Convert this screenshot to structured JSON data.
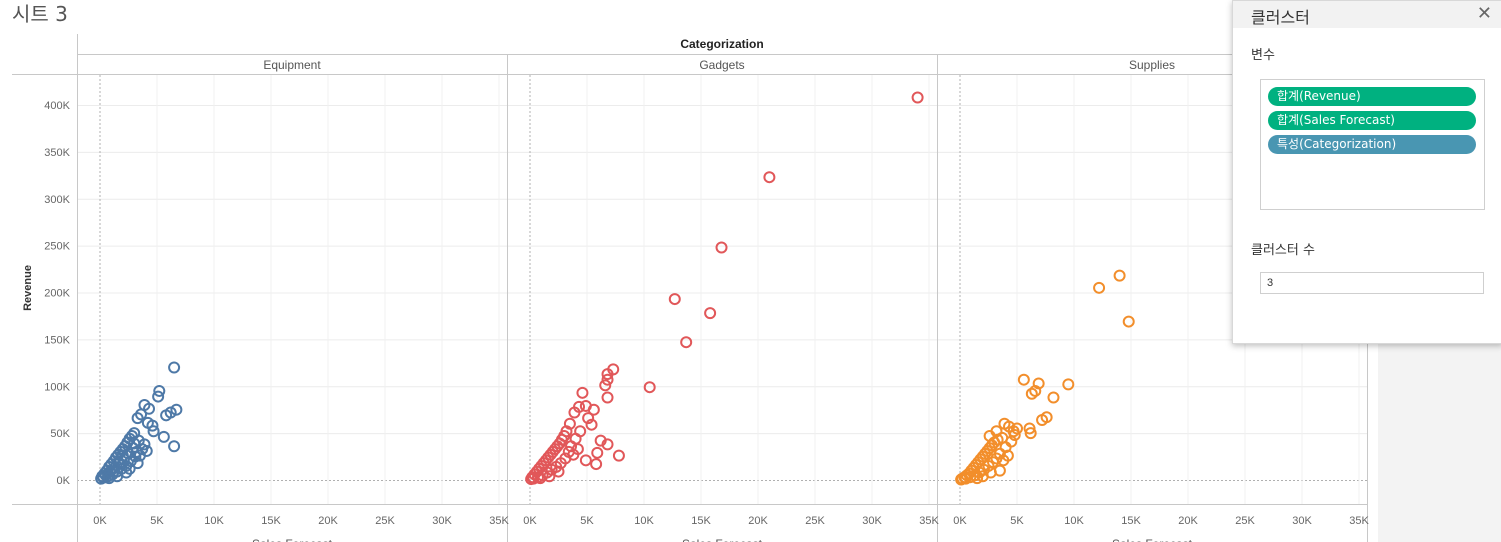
{
  "sheet": {
    "title": "시트 3"
  },
  "chart_data": {
    "type": "scatter",
    "column_header": "Categorization",
    "ylabel": "Revenue",
    "xlabel": "Sales Forecast",
    "ylim": [
      0,
      425000
    ],
    "xlim": [
      -2000,
      36000
    ],
    "y_ticks": [
      0,
      50000,
      100000,
      150000,
      200000,
      250000,
      300000,
      350000,
      400000
    ],
    "y_tick_labels": [
      "0K",
      "50K",
      "100K",
      "150K",
      "200K",
      "250K",
      "300K",
      "350K",
      "400K"
    ],
    "x_ticks": [
      0,
      5000,
      10000,
      15000,
      20000,
      25000,
      30000,
      35000
    ],
    "x_tick_labels": [
      "0K",
      "5K",
      "10K",
      "15K",
      "20K",
      "25K",
      "30K",
      "35K"
    ],
    "panels": [
      {
        "name": "Equipment",
        "color": "#4e79a7",
        "points": [
          {
            "x": 6500,
            "y": 120000
          },
          {
            "x": 5200,
            "y": 95000
          },
          {
            "x": 5100,
            "y": 89000
          },
          {
            "x": 3900,
            "y": 80000
          },
          {
            "x": 4300,
            "y": 76000
          },
          {
            "x": 6700,
            "y": 75000
          },
          {
            "x": 6200,
            "y": 72000
          },
          {
            "x": 5800,
            "y": 69000
          },
          {
            "x": 3600,
            "y": 70000
          },
          {
            "x": 3300,
            "y": 66000
          },
          {
            "x": 4200,
            "y": 61000
          },
          {
            "x": 4600,
            "y": 58000
          },
          {
            "x": 4700,
            "y": 52000
          },
          {
            "x": 5600,
            "y": 46000
          },
          {
            "x": 6500,
            "y": 36000
          },
          {
            "x": 3900,
            "y": 38000
          },
          {
            "x": 4100,
            "y": 31000
          },
          {
            "x": 3400,
            "y": 42000
          },
          {
            "x": 3000,
            "y": 50000
          },
          {
            "x": 2800,
            "y": 47000
          },
          {
            "x": 2600,
            "y": 44000
          },
          {
            "x": 2400,
            "y": 40000
          },
          {
            "x": 2200,
            "y": 36000
          },
          {
            "x": 2000,
            "y": 33000
          },
          {
            "x": 1800,
            "y": 30000
          },
          {
            "x": 1600,
            "y": 27000
          },
          {
            "x": 1400,
            "y": 24000
          },
          {
            "x": 1200,
            "y": 20000
          },
          {
            "x": 1000,
            "y": 17000
          },
          {
            "x": 800,
            "y": 14000
          },
          {
            "x": 600,
            "y": 10000
          },
          {
            "x": 400,
            "y": 7000
          },
          {
            "x": 200,
            "y": 4000
          },
          {
            "x": 100,
            "y": 1500
          },
          {
            "x": 300,
            "y": 2500
          },
          {
            "x": 700,
            "y": 4000
          },
          {
            "x": 1100,
            "y": 6000
          },
          {
            "x": 1500,
            "y": 9000
          },
          {
            "x": 1900,
            "y": 12000
          },
          {
            "x": 2300,
            "y": 15000
          },
          {
            "x": 2700,
            "y": 20000
          },
          {
            "x": 3100,
            "y": 25000
          },
          {
            "x": 3200,
            "y": 30000
          },
          {
            "x": 2900,
            "y": 34000
          },
          {
            "x": 2500,
            "y": 28000
          },
          {
            "x": 2100,
            "y": 22000
          },
          {
            "x": 1700,
            "y": 18000
          },
          {
            "x": 1300,
            "y": 13000
          },
          {
            "x": 900,
            "y": 9000
          },
          {
            "x": 500,
            "y": 5000
          },
          {
            "x": 1500,
            "y": 4000
          },
          {
            "x": 2300,
            "y": 8000
          },
          {
            "x": 2600,
            "y": 12000
          },
          {
            "x": 3300,
            "y": 18000
          },
          {
            "x": 3500,
            "y": 26000
          },
          {
            "x": 3700,
            "y": 33000
          },
          {
            "x": 3000,
            "y": 39000
          },
          {
            "x": 2000,
            "y": 26000
          },
          {
            "x": 1200,
            "y": 9000
          },
          {
            "x": 800,
            "y": 2000
          }
        ]
      },
      {
        "name": "Gadgets",
        "color": "#e15759",
        "points": [
          {
            "x": 34000,
            "y": 408000
          },
          {
            "x": 21000,
            "y": 323000
          },
          {
            "x": 16800,
            "y": 248000
          },
          {
            "x": 12700,
            "y": 193000
          },
          {
            "x": 15800,
            "y": 178000
          },
          {
            "x": 13700,
            "y": 147000
          },
          {
            "x": 10500,
            "y": 99000
          },
          {
            "x": 7300,
            "y": 118000
          },
          {
            "x": 6800,
            "y": 113000
          },
          {
            "x": 6800,
            "y": 107000
          },
          {
            "x": 6600,
            "y": 101000
          },
          {
            "x": 4600,
            "y": 93000
          },
          {
            "x": 6800,
            "y": 88000
          },
          {
            "x": 4900,
            "y": 79000
          },
          {
            "x": 4300,
            "y": 78000
          },
          {
            "x": 3900,
            "y": 72000
          },
          {
            "x": 5600,
            "y": 75000
          },
          {
            "x": 5100,
            "y": 66000
          },
          {
            "x": 5400,
            "y": 59000
          },
          {
            "x": 3500,
            "y": 60000
          },
          {
            "x": 6200,
            "y": 42000
          },
          {
            "x": 6800,
            "y": 38000
          },
          {
            "x": 7800,
            "y": 26000
          },
          {
            "x": 5900,
            "y": 29000
          },
          {
            "x": 5800,
            "y": 17000
          },
          {
            "x": 4900,
            "y": 21000
          },
          {
            "x": 4000,
            "y": 44000
          },
          {
            "x": 3200,
            "y": 52000
          },
          {
            "x": 3000,
            "y": 47000
          },
          {
            "x": 2800,
            "y": 43000
          },
          {
            "x": 2600,
            "y": 39000
          },
          {
            "x": 2400,
            "y": 36000
          },
          {
            "x": 2200,
            "y": 33000
          },
          {
            "x": 2000,
            "y": 30000
          },
          {
            "x": 1800,
            "y": 27000
          },
          {
            "x": 1600,
            "y": 24000
          },
          {
            "x": 1400,
            "y": 21000
          },
          {
            "x": 1200,
            "y": 18000
          },
          {
            "x": 1000,
            "y": 15000
          },
          {
            "x": 800,
            "y": 12000
          },
          {
            "x": 600,
            "y": 9000
          },
          {
            "x": 400,
            "y": 6000
          },
          {
            "x": 200,
            "y": 3000
          },
          {
            "x": 100,
            "y": 1000
          },
          {
            "x": 300,
            "y": 1500
          },
          {
            "x": 700,
            "y": 3000
          },
          {
            "x": 1100,
            "y": 5000
          },
          {
            "x": 1500,
            "y": 8000
          },
          {
            "x": 1900,
            "y": 11000
          },
          {
            "x": 2300,
            "y": 14000
          },
          {
            "x": 2700,
            "y": 18000
          },
          {
            "x": 3100,
            "y": 23000
          },
          {
            "x": 3400,
            "y": 30000
          },
          {
            "x": 3600,
            "y": 36000
          },
          {
            "x": 4400,
            "y": 52000
          },
          {
            "x": 3800,
            "y": 27000
          },
          {
            "x": 4200,
            "y": 33000
          },
          {
            "x": 2500,
            "y": 9000
          },
          {
            "x": 1700,
            "y": 4000
          },
          {
            "x": 900,
            "y": 2000
          }
        ]
      },
      {
        "name": "Supplies",
        "color": "#f28e2b",
        "points": [
          {
            "x": 14000,
            "y": 218000
          },
          {
            "x": 12200,
            "y": 205000
          },
          {
            "x": 14800,
            "y": 169000
          },
          {
            "x": 5600,
            "y": 107000
          },
          {
            "x": 6900,
            "y": 103000
          },
          {
            "x": 9500,
            "y": 102000
          },
          {
            "x": 6600,
            "y": 95000
          },
          {
            "x": 6300,
            "y": 92000
          },
          {
            "x": 8200,
            "y": 88000
          },
          {
            "x": 7600,
            "y": 67000
          },
          {
            "x": 7200,
            "y": 64000
          },
          {
            "x": 3900,
            "y": 60000
          },
          {
            "x": 4300,
            "y": 57000
          },
          {
            "x": 5000,
            "y": 55000
          },
          {
            "x": 4700,
            "y": 52000
          },
          {
            "x": 6100,
            "y": 55000
          },
          {
            "x": 6200,
            "y": 50000
          },
          {
            "x": 4800,
            "y": 48000
          },
          {
            "x": 3700,
            "y": 45000
          },
          {
            "x": 3300,
            "y": 43000
          },
          {
            "x": 3000,
            "y": 40000
          },
          {
            "x": 2800,
            "y": 37000
          },
          {
            "x": 2600,
            "y": 34000
          },
          {
            "x": 2400,
            "y": 31000
          },
          {
            "x": 2200,
            "y": 28000
          },
          {
            "x": 2000,
            "y": 25000
          },
          {
            "x": 1800,
            "y": 22000
          },
          {
            "x": 1600,
            "y": 19000
          },
          {
            "x": 1400,
            "y": 16000
          },
          {
            "x": 1200,
            "y": 13000
          },
          {
            "x": 1000,
            "y": 10000
          },
          {
            "x": 800,
            "y": 7000
          },
          {
            "x": 600,
            "y": 5000
          },
          {
            "x": 400,
            "y": 3000
          },
          {
            "x": 200,
            "y": 1500
          },
          {
            "x": 100,
            "y": 500
          },
          {
            "x": 500,
            "y": 1500
          },
          {
            "x": 900,
            "y": 3000
          },
          {
            "x": 1300,
            "y": 5000
          },
          {
            "x": 1700,
            "y": 8000
          },
          {
            "x": 2100,
            "y": 11000
          },
          {
            "x": 2500,
            "y": 15000
          },
          {
            "x": 2900,
            "y": 19000
          },
          {
            "x": 3200,
            "y": 23000
          },
          {
            "x": 3500,
            "y": 28000
          },
          {
            "x": 4000,
            "y": 35000
          },
          {
            "x": 4200,
            "y": 26000
          },
          {
            "x": 3800,
            "y": 21000
          },
          {
            "x": 2700,
            "y": 8000
          },
          {
            "x": 3500,
            "y": 10000
          },
          {
            "x": 2000,
            "y": 4000
          },
          {
            "x": 1500,
            "y": 2000
          },
          {
            "x": 3200,
            "y": 52000
          },
          {
            "x": 2600,
            "y": 47000
          },
          {
            "x": 4500,
            "y": 41000
          }
        ]
      }
    ]
  },
  "cluster_panel": {
    "title": "클러스터",
    "close_icon": "close-icon",
    "variables_label": "변수",
    "variables": [
      {
        "label": "합계(Revenue)",
        "color": "#00b180"
      },
      {
        "label": "합계(Sales Forecast)",
        "color": "#00b180"
      },
      {
        "label": "특성(Categorization)",
        "color": "#4996b2"
      }
    ],
    "cluster_count_label": "클러스터 수",
    "cluster_count_value": "3"
  }
}
